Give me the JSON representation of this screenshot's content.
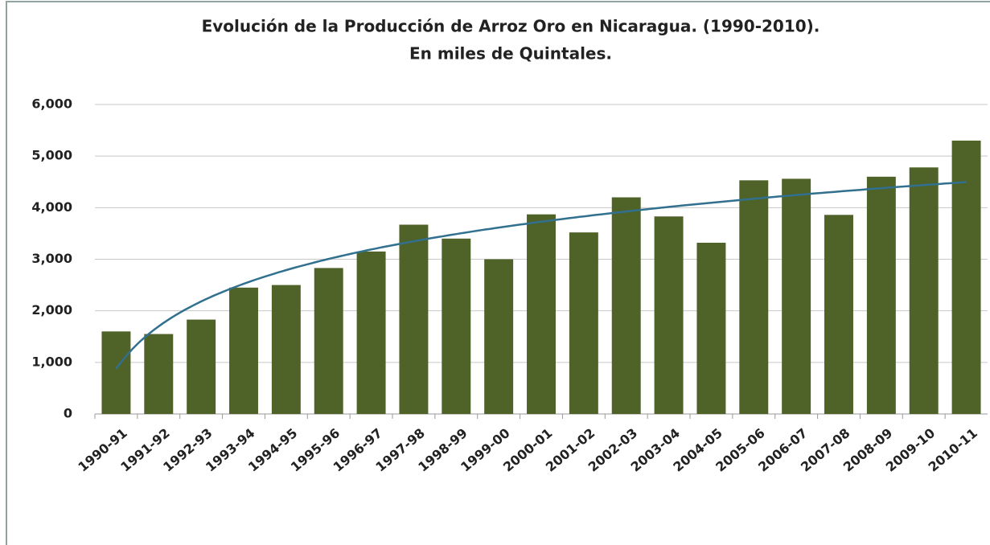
{
  "chart_data": {
    "type": "bar",
    "title": "Evolución de la Producción de Arroz Oro en Nicaragua. (1990-2010).",
    "subtitle": "En miles de Quintales.",
    "categories": [
      "1990-91",
      "1991-92",
      "1992-93",
      "1993-94",
      "1994-95",
      "1995-96",
      "1996-97",
      "1997-98",
      "1998-99",
      "1999-00",
      "2000-01",
      "2001-02",
      "2002-03",
      "2003-04",
      "2004-05",
      "2005-06",
      "2006-07",
      "2007-08",
      "2008-09",
      "2009-10",
      "2010-11"
    ],
    "values": [
      1600,
      1550,
      1830,
      2450,
      2500,
      2830,
      3150,
      3670,
      3400,
      3000,
      3870,
      3520,
      4200,
      3830,
      3320,
      4530,
      4560,
      3860,
      4600,
      4780,
      5300
    ],
    "color": "#4f6228",
    "trendline": {
      "type": "logarithmic",
      "color": "#31708f"
    },
    "ylim": [
      0,
      6000
    ],
    "yticks": [
      0,
      {
        "value": 1000,
        "label": "1,000"
      },
      {
        "value": 2000,
        "label": "2,000"
      },
      {
        "value": 3000,
        "label": "3,000"
      },
      {
        "value": 4000,
        "label": "4,000"
      },
      {
        "value": 5000,
        "label": "5,000"
      },
      {
        "value": 6000,
        "label": "6,000"
      }
    ],
    "grid": true
  }
}
